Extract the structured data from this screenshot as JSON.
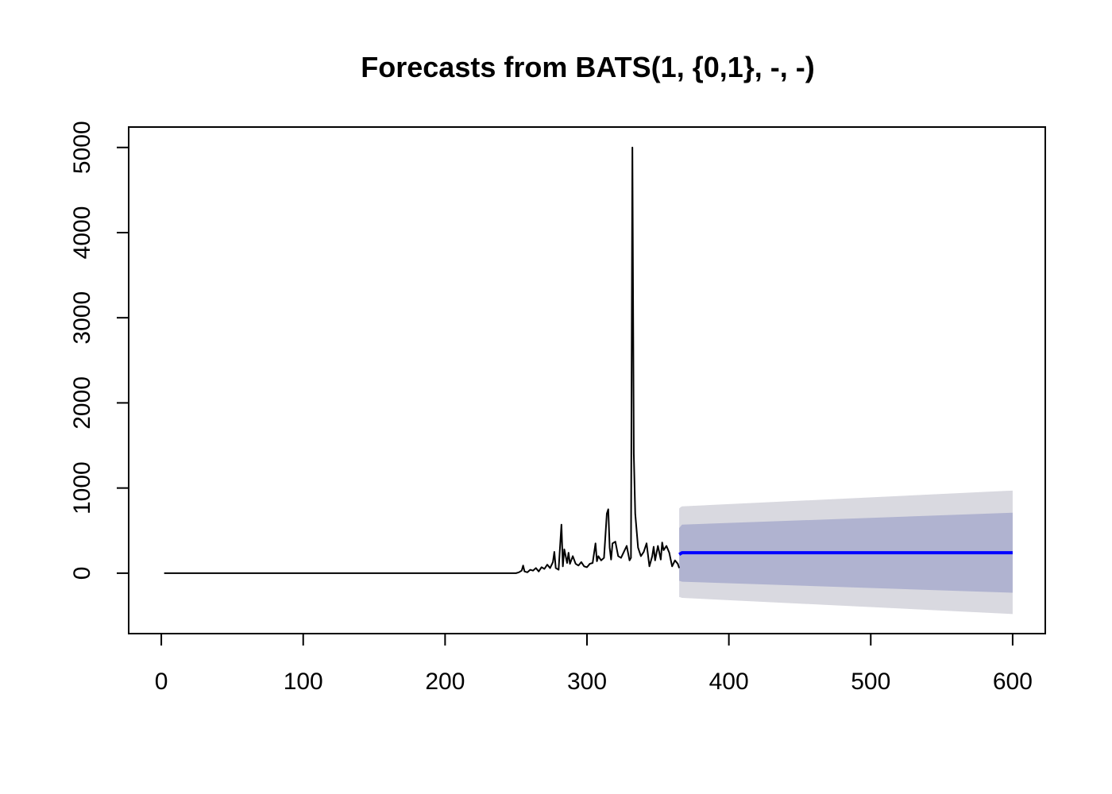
{
  "chart_data": {
    "type": "line",
    "title": "Forecasts from BATS(1, {0,1}, -, -)",
    "xlabel": "",
    "ylabel": "",
    "xlim": [
      -23,
      623
    ],
    "ylim": [
      -710,
      5240
    ],
    "x_ticks": [
      0,
      100,
      200,
      300,
      400,
      500,
      600
    ],
    "y_ticks": [
      0,
      1000,
      2000,
      3000,
      4000,
      5000
    ],
    "grid": false,
    "colors": {
      "history": "#000000",
      "forecast_mean": "#0000ff",
      "interval_80": "#b0b3d0",
      "interval_95": "#d9d9e0"
    },
    "history": {
      "x": [
        2,
        250,
        252,
        254,
        255,
        256,
        258,
        260,
        262,
        264,
        266,
        268,
        270,
        272,
        274,
        276,
        277,
        278,
        280,
        282,
        283,
        284,
        286,
        287,
        288,
        290,
        292,
        294,
        296,
        298,
        300,
        302,
        304,
        306,
        307,
        308,
        310,
        312,
        314,
        315,
        316,
        317,
        318,
        320,
        322,
        324,
        326,
        328,
        330,
        331,
        332,
        333,
        334,
        336,
        338,
        340,
        342,
        344,
        346,
        347,
        348,
        350,
        352,
        353,
        354,
        356,
        358,
        360,
        362,
        364,
        365
      ],
      "y": [
        0,
        0,
        10,
        30,
        90,
        20,
        10,
        40,
        30,
        60,
        20,
        70,
        50,
        100,
        60,
        130,
        250,
        60,
        40,
        570,
        80,
        280,
        120,
        240,
        110,
        200,
        110,
        90,
        130,
        80,
        70,
        110,
        120,
        350,
        140,
        200,
        150,
        180,
        700,
        750,
        300,
        160,
        350,
        370,
        200,
        180,
        250,
        320,
        150,
        180,
        5000,
        1400,
        700,
        300,
        200,
        250,
        350,
        80,
        200,
        310,
        150,
        320,
        160,
        360,
        270,
        320,
        240,
        80,
        150,
        110,
        60
      ]
    },
    "forecast": {
      "x": [
        365,
        366,
        367,
        600
      ],
      "mean": [
        220,
        230,
        240,
        240
      ],
      "lo80": [
        -90,
        -95,
        -100,
        -230
      ],
      "hi80": [
        530,
        550,
        570,
        710
      ],
      "lo95": [
        -280,
        -285,
        -290,
        -480
      ],
      "hi95": [
        760,
        775,
        785,
        970
      ]
    }
  }
}
